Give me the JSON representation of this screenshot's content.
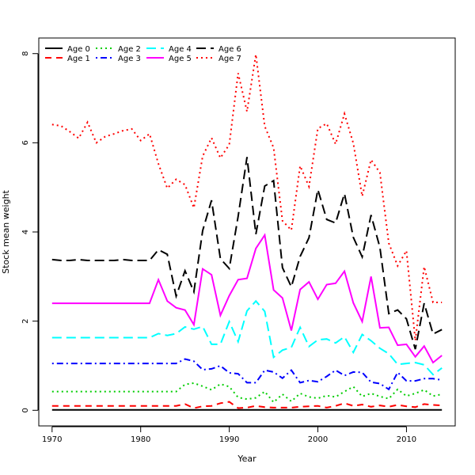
{
  "chart_data": {
    "type": "line",
    "title": "",
    "xlabel": "Year",
    "ylabel": "Stock mean weight",
    "xlim": [
      1968.5,
      2015.5
    ],
    "ylim": [
      -0.35,
      8.35
    ],
    "xticks": [
      1970,
      1980,
      1990,
      2000,
      2010
    ],
    "yticks": [
      0,
      2,
      4,
      6,
      8
    ],
    "legend_position": "top-left",
    "x": [
      1970,
      1971,
      1972,
      1973,
      1974,
      1975,
      1976,
      1977,
      1978,
      1979,
      1980,
      1981,
      1982,
      1983,
      1984,
      1985,
      1986,
      1987,
      1988,
      1989,
      1990,
      1991,
      1992,
      1993,
      1994,
      1995,
      1996,
      1997,
      1998,
      1999,
      2000,
      2001,
      2002,
      2003,
      2004,
      2005,
      2006,
      2007,
      2008,
      2009,
      2010,
      2011,
      2012,
      2013,
      2014
    ],
    "series": [
      {
        "name": "Age 0",
        "color": "#000000",
        "dash": "solid",
        "values": [
          0.01,
          0.01,
          0.01,
          0.01,
          0.01,
          0.01,
          0.01,
          0.01,
          0.01,
          0.01,
          0.01,
          0.01,
          0.01,
          0.01,
          0.01,
          0.01,
          0.01,
          0.01,
          0.01,
          0.01,
          0.01,
          0.01,
          0.01,
          0.01,
          0.01,
          0.01,
          0.01,
          0.01,
          0.01,
          0.01,
          0.01,
          0.01,
          0.01,
          0.01,
          0.01,
          0.01,
          0.01,
          0.01,
          0.01,
          0.01,
          0.01,
          0.01,
          0.01,
          0.01,
          0.01
        ]
      },
      {
        "name": "Age 1",
        "color": "#ff0000",
        "dash": "dashed",
        "values": [
          0.1,
          0.1,
          0.1,
          0.1,
          0.1,
          0.1,
          0.1,
          0.1,
          0.1,
          0.1,
          0.1,
          0.1,
          0.1,
          0.1,
          0.1,
          0.14,
          0.05,
          0.09,
          0.1,
          0.16,
          0.19,
          0.05,
          0.06,
          0.1,
          0.07,
          0.06,
          0.06,
          0.06,
          0.08,
          0.09,
          0.1,
          0.06,
          0.1,
          0.16,
          0.1,
          0.13,
          0.08,
          0.11,
          0.08,
          0.12,
          0.09,
          0.07,
          0.14,
          0.12,
          0.11
        ]
      },
      {
        "name": "Age 2",
        "color": "#00cd00",
        "dash": "dotted",
        "values": [
          0.42,
          0.42,
          0.42,
          0.42,
          0.42,
          0.42,
          0.42,
          0.42,
          0.42,
          0.42,
          0.42,
          0.42,
          0.42,
          0.42,
          0.42,
          0.58,
          0.61,
          0.54,
          0.46,
          0.59,
          0.53,
          0.29,
          0.25,
          0.28,
          0.42,
          0.18,
          0.36,
          0.2,
          0.38,
          0.3,
          0.27,
          0.33,
          0.3,
          0.42,
          0.53,
          0.31,
          0.38,
          0.31,
          0.26,
          0.47,
          0.32,
          0.38,
          0.46,
          0.32,
          0.36
        ]
      },
      {
        "name": "Age 3",
        "color": "#0000ff",
        "dash": "dotdash",
        "values": [
          1.05,
          1.05,
          1.05,
          1.05,
          1.05,
          1.05,
          1.05,
          1.05,
          1.05,
          1.05,
          1.05,
          1.05,
          1.05,
          1.05,
          1.05,
          1.15,
          1.1,
          0.91,
          0.93,
          1.0,
          0.84,
          0.82,
          0.62,
          0.62,
          0.9,
          0.86,
          0.72,
          0.9,
          0.62,
          0.67,
          0.64,
          0.76,
          0.9,
          0.78,
          0.86,
          0.85,
          0.63,
          0.6,
          0.47,
          0.85,
          0.66,
          0.66,
          0.71,
          0.71,
          0.68
        ]
      },
      {
        "name": "Age 4",
        "color": "#00ffff",
        "dash": "longdash",
        "values": [
          1.63,
          1.63,
          1.63,
          1.63,
          1.63,
          1.63,
          1.63,
          1.63,
          1.63,
          1.63,
          1.63,
          1.63,
          1.72,
          1.68,
          1.72,
          1.87,
          1.82,
          1.88,
          1.48,
          1.48,
          1.99,
          1.54,
          2.23,
          2.45,
          2.22,
          1.19,
          1.35,
          1.41,
          1.86,
          1.43,
          1.58,
          1.6,
          1.51,
          1.65,
          1.3,
          1.7,
          1.56,
          1.39,
          1.27,
          1.03,
          1.05,
          1.07,
          1.02,
          0.8,
          0.95
        ]
      },
      {
        "name": "Age 5",
        "color": "#ff00ff",
        "dash": "solid",
        "values": [
          2.4,
          2.4,
          2.4,
          2.4,
          2.4,
          2.4,
          2.4,
          2.4,
          2.4,
          2.4,
          2.4,
          2.4,
          2.93,
          2.45,
          2.3,
          2.25,
          1.92,
          3.17,
          3.04,
          2.13,
          2.57,
          2.93,
          2.96,
          3.63,
          3.93,
          2.7,
          2.52,
          1.79,
          2.71,
          2.88,
          2.49,
          2.82,
          2.85,
          3.12,
          2.41,
          1.99,
          3.0,
          1.85,
          1.86,
          1.46,
          1.48,
          1.2,
          1.44,
          1.07,
          1.23
        ]
      },
      {
        "name": "Age 6",
        "color": "#000000",
        "dash": "longdash",
        "values": [
          3.38,
          3.36,
          3.36,
          3.38,
          3.36,
          3.36,
          3.36,
          3.36,
          3.38,
          3.36,
          3.36,
          3.36,
          3.6,
          3.5,
          2.56,
          3.13,
          2.66,
          4.03,
          4.71,
          3.4,
          3.18,
          4.35,
          5.68,
          3.95,
          5.03,
          5.15,
          3.2,
          2.77,
          3.45,
          3.87,
          4.95,
          4.28,
          4.2,
          4.86,
          3.88,
          3.44,
          4.38,
          3.65,
          2.17,
          2.25,
          2.05,
          1.37,
          2.4,
          1.71,
          1.81
        ]
      },
      {
        "name": "Age 7",
        "color": "#ff0000",
        "dash": "dotted",
        "values": [
          6.41,
          6.38,
          6.25,
          6.1,
          6.46,
          6.0,
          6.14,
          6.2,
          6.27,
          6.31,
          6.05,
          6.2,
          5.53,
          4.98,
          5.18,
          5.06,
          4.54,
          5.7,
          6.11,
          5.66,
          5.96,
          7.56,
          6.7,
          7.98,
          6.37,
          5.89,
          4.25,
          4.04,
          5.48,
          5.02,
          6.32,
          6.43,
          5.97,
          6.65,
          5.99,
          4.8,
          5.62,
          5.33,
          3.75,
          3.24,
          3.58,
          1.56,
          3.22,
          2.42,
          2.42
        ]
      }
    ]
  }
}
